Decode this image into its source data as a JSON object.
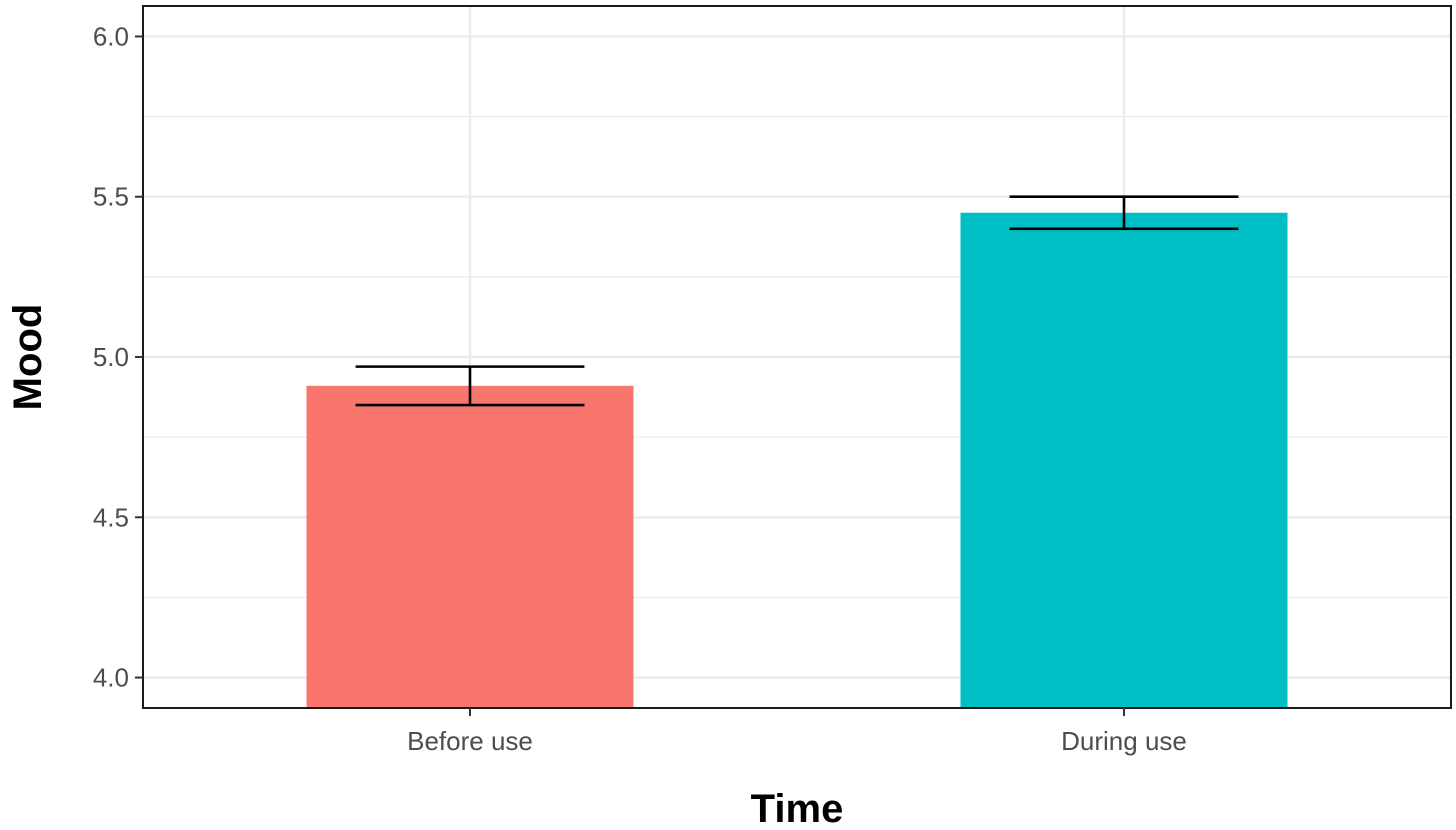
{
  "chart_data": {
    "type": "bar",
    "title": "",
    "xlabel": "Time",
    "ylabel": "Mood",
    "categories": [
      "Before use",
      "During use"
    ],
    "values": [
      4.91,
      5.45
    ],
    "error_bars": [
      {
        "low": 4.85,
        "high": 4.97
      },
      {
        "low": 5.4,
        "high": 5.5
      }
    ],
    "colors": [
      "#f8766d",
      "#00bfc4"
    ],
    "ylim": [
      3.905,
      6.095
    ],
    "yticks": [
      "4.0",
      "4.5",
      "5.0",
      "5.5",
      "6.0"
    ],
    "grid": true,
    "legend": "none"
  }
}
